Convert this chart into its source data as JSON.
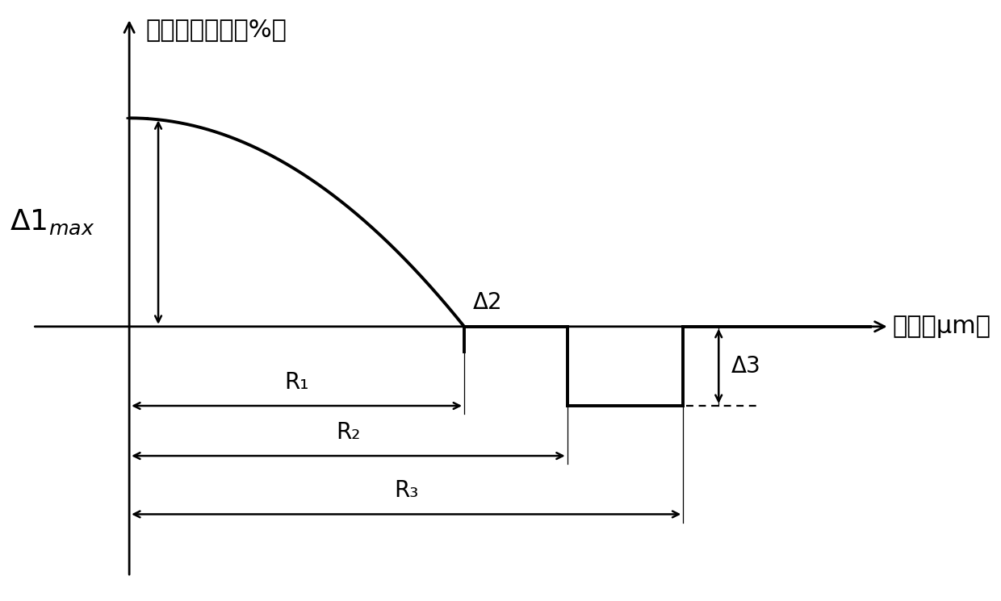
{
  "title_y_label": "相对折射率差（%）",
  "title_x_label": "半径（μm）",
  "background_color": "#ffffff",
  "line_color": "#000000",
  "delta1_max": 1.0,
  "delta2_val": 0.0,
  "delta3_val": -0.38,
  "R1": 5.2,
  "R2": 6.8,
  "R3": 8.6,
  "alpha_power": 2.0,
  "R1_label": "R₁",
  "R2_label": "R₂",
  "R3_label": "R₃",
  "font_size_main": 22,
  "font_size_labels": 20,
  "font_size_delta1": 26,
  "xlim": [
    -1.8,
    12.5
  ],
  "ylim": [
    -1.3,
    1.55
  ]
}
